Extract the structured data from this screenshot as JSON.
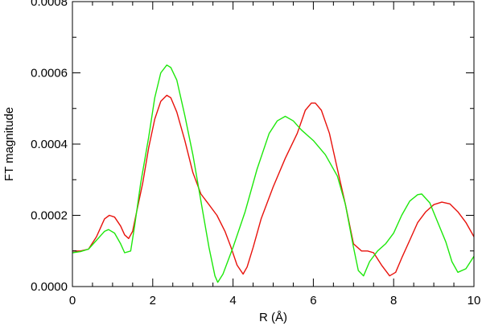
{
  "chart_data": {
    "type": "line",
    "xlabel": "R (Å)",
    "ylabel": "FT magnitude",
    "xlim": [
      0,
      10
    ],
    "ylim": [
      0,
      0.0008
    ],
    "x_ticks": [
      "0",
      "2",
      "4",
      "6",
      "8",
      "10"
    ],
    "y_ticks": [
      "0.0000",
      "0.0002",
      "0.0004",
      "0.0006",
      "0.0008"
    ],
    "grid": false,
    "series": [
      {
        "color": "#e8120c",
        "points": [
          [
            0,
            0.0001
          ],
          [
            0.2,
            0.0001
          ],
          [
            0.4,
            0.000105
          ],
          [
            0.6,
            0.00014
          ],
          [
            0.8,
            0.00019
          ],
          [
            0.92,
            0.0002
          ],
          [
            1.05,
            0.000195
          ],
          [
            1.2,
            0.00017
          ],
          [
            1.3,
            0.000145
          ],
          [
            1.4,
            0.000135
          ],
          [
            1.5,
            0.000155
          ],
          [
            1.6,
            0.00021
          ],
          [
            1.75,
            0.00029
          ],
          [
            1.9,
            0.00039
          ],
          [
            2.05,
            0.00047
          ],
          [
            2.2,
            0.00052
          ],
          [
            2.35,
            0.000537
          ],
          [
            2.45,
            0.00053
          ],
          [
            2.6,
            0.00049
          ],
          [
            2.8,
            0.00041
          ],
          [
            3.0,
            0.00032
          ],
          [
            3.2,
            0.00026
          ],
          [
            3.4,
            0.00023
          ],
          [
            3.6,
            0.0002
          ],
          [
            3.8,
            0.000155
          ],
          [
            3.95,
            0.00011
          ],
          [
            4.1,
            6e-05
          ],
          [
            4.25,
            3.5e-05
          ],
          [
            4.35,
            5.5e-05
          ],
          [
            4.5,
            0.00011
          ],
          [
            4.7,
            0.00019
          ],
          [
            5.0,
            0.00028
          ],
          [
            5.3,
            0.00036
          ],
          [
            5.6,
            0.00043
          ],
          [
            5.8,
            0.000495
          ],
          [
            5.95,
            0.000515
          ],
          [
            6.05,
            0.000515
          ],
          [
            6.2,
            0.000495
          ],
          [
            6.4,
            0.00043
          ],
          [
            6.6,
            0.00033
          ],
          [
            6.8,
            0.00023
          ],
          [
            7.0,
            0.00012
          ],
          [
            7.2,
            0.0001
          ],
          [
            7.35,
            0.0001
          ],
          [
            7.5,
            9.5e-05
          ],
          [
            7.7,
            6e-05
          ],
          [
            7.9,
            3e-05
          ],
          [
            8.05,
            4e-05
          ],
          [
            8.2,
            8e-05
          ],
          [
            8.4,
            0.00013
          ],
          [
            8.6,
            0.00018
          ],
          [
            8.8,
            0.00021
          ],
          [
            9.0,
            0.00023
          ],
          [
            9.2,
            0.000237
          ],
          [
            9.4,
            0.000232
          ],
          [
            9.6,
            0.00021
          ],
          [
            9.8,
            0.00018
          ],
          [
            10.0,
            0.00014
          ]
        ]
      },
      {
        "color": "#1ee80c",
        "points": [
          [
            0,
            9.5e-05
          ],
          [
            0.2,
            9.8e-05
          ],
          [
            0.4,
            0.000105
          ],
          [
            0.6,
            0.00013
          ],
          [
            0.8,
            0.000155
          ],
          [
            0.9,
            0.00016
          ],
          [
            1.05,
            0.00015
          ],
          [
            1.2,
            0.00012
          ],
          [
            1.3,
            9.5e-05
          ],
          [
            1.45,
            0.0001
          ],
          [
            1.55,
            0.00017
          ],
          [
            1.7,
            0.00029
          ],
          [
            1.9,
            0.00042
          ],
          [
            2.05,
            0.00053
          ],
          [
            2.2,
            0.0006
          ],
          [
            2.35,
            0.000622
          ],
          [
            2.45,
            0.000615
          ],
          [
            2.6,
            0.00058
          ],
          [
            2.8,
            0.00048
          ],
          [
            3.0,
            0.00037
          ],
          [
            3.2,
            0.00024
          ],
          [
            3.4,
            0.00011
          ],
          [
            3.55,
            3e-05
          ],
          [
            3.62,
            1.2e-05
          ],
          [
            3.75,
            3.5e-05
          ],
          [
            4.0,
            0.00011
          ],
          [
            4.3,
            0.00021
          ],
          [
            4.6,
            0.00033
          ],
          [
            4.9,
            0.00043
          ],
          [
            5.1,
            0.000465
          ],
          [
            5.3,
            0.000478
          ],
          [
            5.5,
            0.000465
          ],
          [
            5.7,
            0.00044
          ],
          [
            6.0,
            0.00041
          ],
          [
            6.3,
            0.00037
          ],
          [
            6.6,
            0.00031
          ],
          [
            6.8,
            0.00023
          ],
          [
            7.0,
            0.00011
          ],
          [
            7.12,
            4.5e-05
          ],
          [
            7.25,
            3e-05
          ],
          [
            7.4,
            7e-05
          ],
          [
            7.6,
            0.0001
          ],
          [
            7.8,
            0.00012
          ],
          [
            8.0,
            0.00015
          ],
          [
            8.2,
            0.0002
          ],
          [
            8.4,
            0.00024
          ],
          [
            8.6,
            0.000258
          ],
          [
            8.7,
            0.00026
          ],
          [
            8.9,
            0.000235
          ],
          [
            9.1,
            0.00018
          ],
          [
            9.3,
            0.000125
          ],
          [
            9.45,
            7e-05
          ],
          [
            9.6,
            4e-05
          ],
          [
            9.8,
            5e-05
          ],
          [
            10.0,
            8.5e-05
          ]
        ]
      }
    ]
  }
}
